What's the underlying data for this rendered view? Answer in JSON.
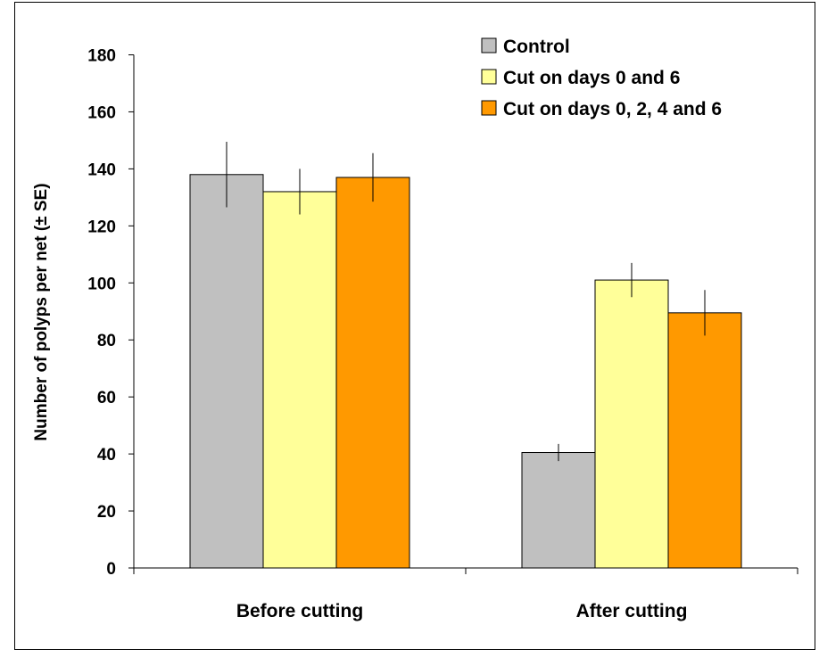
{
  "chart_data": {
    "type": "bar",
    "title": "",
    "xlabel": "",
    "ylabel": "Number of polyps per net (± SE)",
    "ylim": [
      0,
      180
    ],
    "yticks": [
      0,
      20,
      40,
      60,
      80,
      100,
      120,
      140,
      160,
      180
    ],
    "categories": [
      "Before cutting",
      "After cutting"
    ],
    "series": [
      {
        "name": "Control",
        "color": "#c0c0c0",
        "values": [
          138,
          40.5
        ],
        "errors": [
          11.5,
          3
        ]
      },
      {
        "name": "Cut on days 0 and 6",
        "color": "#ffff99",
        "values": [
          132,
          101
        ],
        "errors": [
          8,
          6
        ]
      },
      {
        "name": "Cut on days 0, 2, 4 and 6",
        "color": "#ff9900",
        "values": [
          137,
          89.5
        ],
        "errors": [
          8.5,
          8
        ]
      }
    ],
    "grid": false,
    "legend_position": "top-right"
  }
}
